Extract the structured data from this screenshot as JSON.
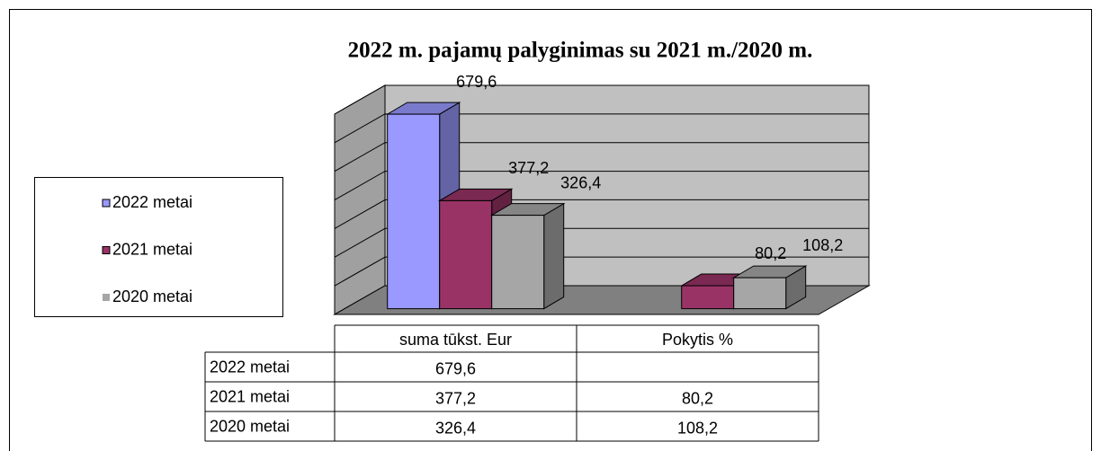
{
  "chart_data": {
    "type": "bar",
    "title": "2022 m. pajamų   palyginimas su 2021 m./2020 m.",
    "categories": [
      "suma tūkst. Eur",
      "Pokytis %"
    ],
    "series": [
      {
        "name": "2022 metai",
        "color": "#9999ff",
        "values": [
          679.6,
          null
        ],
        "value_labels": [
          "679,6",
          null
        ]
      },
      {
        "name": "2021 metai",
        "color": "#993366",
        "values": [
          377.2,
          80.2
        ],
        "value_labels": [
          "377,2",
          "80,2"
        ]
      },
      {
        "name": "2020 metai",
        "color": "#a6a6a6",
        "values": [
          326.4,
          108.2
        ],
        "value_labels": [
          "326,4",
          "108,2"
        ]
      }
    ],
    "ylim": [
      0,
      700
    ],
    "yticks": [
      0,
      100,
      200,
      300,
      400,
      500,
      600,
      700
    ],
    "grid": true,
    "legend": "left"
  }
}
